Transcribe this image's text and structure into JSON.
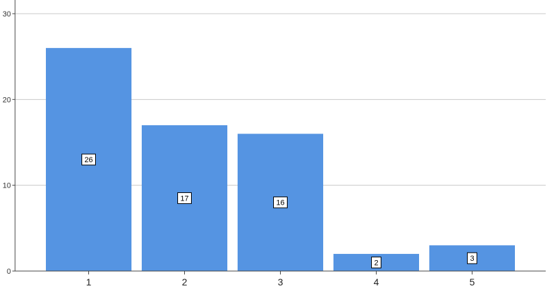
{
  "chart_data": {
    "type": "bar",
    "categories": [
      "1",
      "2",
      "3",
      "4",
      "5"
    ],
    "values": [
      26,
      17,
      16,
      2,
      3
    ],
    "data_labels": [
      "26",
      "17",
      "16",
      "2",
      "3"
    ],
    "y_ticks": [
      0,
      10,
      20,
      30
    ],
    "ylim": [
      0,
      30
    ],
    "grid": true,
    "bar_color": "#5594e2",
    "grid_color": "#c8c8c8",
    "axis_color": "#444444"
  }
}
